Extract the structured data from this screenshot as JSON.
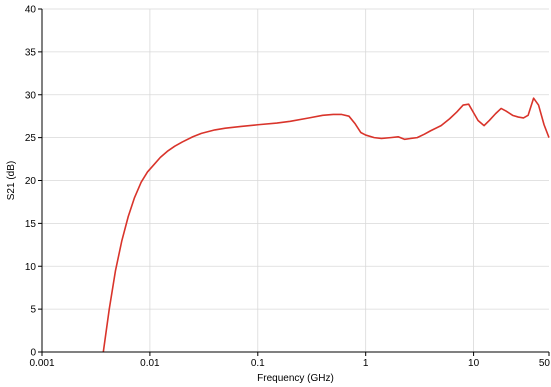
{
  "chart_data": {
    "type": "line",
    "xlabel": "Frequency (GHz)",
    "ylabel": "S21 (dB)",
    "x_scale": "log",
    "xlim": [
      0.001,
      50
    ],
    "ylim": [
      0,
      40
    ],
    "x_ticks": [
      0.001,
      0.01,
      0.1,
      1,
      10,
      50
    ],
    "x_tick_labels": [
      "0.001",
      "0.01",
      "0.1",
      "1",
      "10",
      "50"
    ],
    "y_ticks": [
      0,
      5,
      10,
      15,
      20,
      25,
      30,
      35,
      40
    ],
    "y_tick_labels": [
      "0",
      "5",
      "10",
      "15",
      "20",
      "25",
      "30",
      "35",
      "40"
    ],
    "grid": true,
    "series": [
      {
        "color": "#d9342b",
        "x": [
          0.0037,
          0.0042,
          0.0048,
          0.0055,
          0.0063,
          0.0072,
          0.0083,
          0.0095,
          0.011,
          0.0125,
          0.0145,
          0.017,
          0.02,
          0.025,
          0.03,
          0.04,
          0.05,
          0.07,
          0.1,
          0.15,
          0.2,
          0.3,
          0.4,
          0.5,
          0.6,
          0.7,
          0.8,
          0.9,
          1.0,
          1.2,
          1.4,
          1.7,
          2.0,
          2.3,
          2.6,
          3.0,
          3.5,
          4.0,
          5.0,
          6.0,
          7.0,
          8.0,
          9.0,
          10.0,
          11.0,
          12.5,
          14.0,
          16.0,
          18.0,
          20.0,
          23.0,
          26.0,
          29.0,
          32.0,
          36.0,
          40.0,
          45.0,
          50.0
        ],
        "y": [
          0.0,
          5.0,
          9.5,
          13.0,
          15.8,
          18.0,
          19.8,
          21.0,
          21.9,
          22.7,
          23.4,
          24.0,
          24.5,
          25.1,
          25.5,
          25.9,
          26.1,
          26.3,
          26.5,
          26.7,
          26.9,
          27.3,
          27.6,
          27.7,
          27.7,
          27.5,
          26.6,
          25.6,
          25.3,
          25.0,
          24.9,
          25.0,
          25.1,
          24.8,
          24.9,
          25.0,
          25.4,
          25.8,
          26.4,
          27.2,
          28.0,
          28.8,
          28.9,
          27.9,
          27.0,
          26.4,
          27.0,
          27.8,
          28.4,
          28.1,
          27.6,
          27.4,
          27.3,
          27.6,
          29.6,
          28.8,
          26.5,
          25.0
        ]
      }
    ]
  }
}
